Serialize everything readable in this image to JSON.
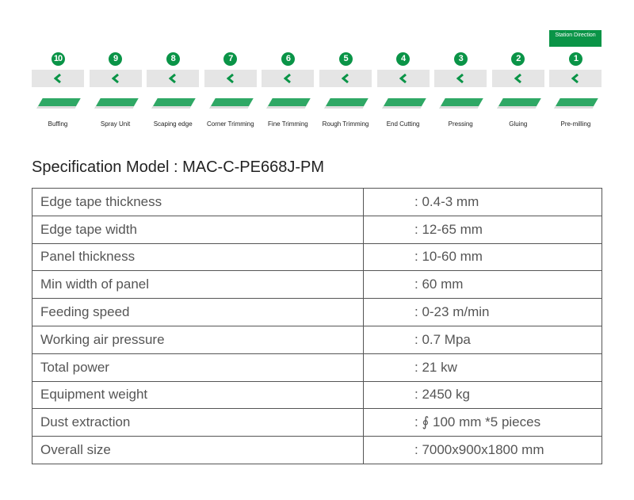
{
  "direction_label": "Station Direction",
  "stations": [
    {
      "num": "10",
      "label": "Buffing"
    },
    {
      "num": "9",
      "label": "Spray Unit"
    },
    {
      "num": "8",
      "label": "Scaping edge"
    },
    {
      "num": "7",
      "label": "Corner Trimming"
    },
    {
      "num": "6",
      "label": "Fine Trimming"
    },
    {
      "num": "5",
      "label": "Rough Trimming"
    },
    {
      "num": "4",
      "label": "End Cutting"
    },
    {
      "num": "3",
      "label": "Pressing"
    },
    {
      "num": "2",
      "label": "Gluing"
    },
    {
      "num": "1",
      "label": "Pre-milling"
    }
  ],
  "accent": "#0a9447",
  "spec_title": "Specification Model : MAC-C-PE668J-PM",
  "specs": [
    {
      "name": "Edge tape thickness",
      "value": ": 0.4-3 mm"
    },
    {
      "name": "Edge tape width",
      "value": ": 12-65 mm"
    },
    {
      "name": "Panel thickness",
      "value": ": 10-60 mm"
    },
    {
      "name": "Min width of panel",
      "value": ": 60 mm"
    },
    {
      "name": "Feeding speed",
      "value": ": 0-23 m/min"
    },
    {
      "name": "Working air pressure",
      "value": ": 0.7 Mpa"
    },
    {
      "name": "Total power",
      "value": ": 21 kw"
    },
    {
      "name": "Equipment weight",
      "value": ": 2450 kg"
    },
    {
      "name": "Dust extraction",
      "value": ": ∮ 100 mm *5 pieces"
    },
    {
      "name": "Overall size",
      "value": ": 7000x900x1800 mm"
    }
  ]
}
